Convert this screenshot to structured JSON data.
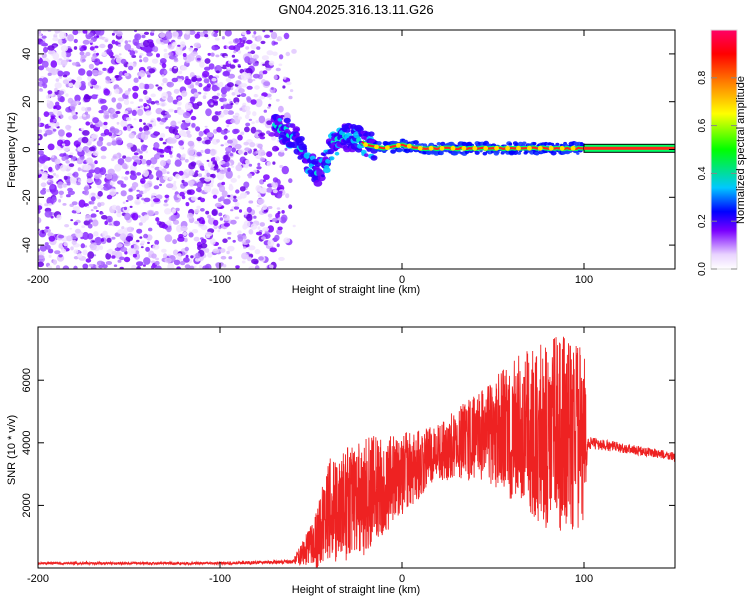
{
  "title": "GN04.2025.316.13.11.G26",
  "chart_data": [
    {
      "type": "heatmap",
      "name": "spectrogram",
      "xlabel": "Height of straight line (km)",
      "ylabel": "Frequency (Hz)",
      "xlim": [
        -200,
        150
      ],
      "ylim": [
        -50,
        50
      ],
      "xticks": [
        -200,
        -100,
        0,
        100
      ],
      "yticks": [
        -40,
        -20,
        0,
        20,
        40
      ],
      "colorbar": {
        "label": "Normalized spectral amplitude",
        "range": [
          0,
          1
        ],
        "ticks": [
          "0.0",
          "0.2",
          "0.4",
          "0.6",
          "0.8"
        ],
        "colors": [
          "#ffffff",
          "#e9d4ff",
          "#7a00ff",
          "#0000ff",
          "#00c8ff",
          "#00ff00",
          "#ffff00",
          "#ff7f00",
          "#ff0000",
          "#ff0066"
        ]
      },
      "noise_region": {
        "x_range": [
          -200,
          -62
        ],
        "freq_range": [
          -50,
          50
        ]
      },
      "ridge": {
        "description": "main signal line",
        "points": [
          {
            "x": -70,
            "y": 10
          },
          {
            "x": -60,
            "y": 6
          },
          {
            "x": -52,
            "y": -4
          },
          {
            "x": -47,
            "y": -10
          },
          {
            "x": -42,
            "y": -5
          },
          {
            "x": -38,
            "y": 2
          },
          {
            "x": -32,
            "y": 5
          },
          {
            "x": -25,
            "y": 5
          },
          {
            "x": -20,
            "y": 2
          },
          {
            "x": -10,
            "y": 0.5
          },
          {
            "x": 0,
            "y": 2
          },
          {
            "x": 10,
            "y": 0.5
          },
          {
            "x": 50,
            "y": 0.5
          },
          {
            "x": 100,
            "y": 0.5
          },
          {
            "x": 150,
            "y": 0.5
          }
        ]
      },
      "stable_band": {
        "x_range": [
          100,
          150
        ],
        "y": 0.5
      }
    },
    {
      "type": "line",
      "name": "snr",
      "xlabel": "Height of straight line (km)",
      "ylabel": "SNR (10 * v/v)",
      "xlim": [
        -200,
        150
      ],
      "ylim": [
        0,
        7700
      ],
      "xticks": [
        -200,
        -100,
        0,
        100
      ],
      "yticks": [
        2000,
        4000,
        6000
      ],
      "series_color": "#ee2222",
      "envelope": [
        {
          "x": -200,
          "mean": 150,
          "spread": 40
        },
        {
          "x": -100,
          "mean": 150,
          "spread": 40
        },
        {
          "x": -60,
          "mean": 200,
          "spread": 60
        },
        {
          "x": -48,
          "mean": 800,
          "spread": 800
        },
        {
          "x": -40,
          "mean": 1800,
          "spread": 1700
        },
        {
          "x": -20,
          "mean": 2300,
          "spread": 1900
        },
        {
          "x": 0,
          "mean": 3000,
          "spread": 1300
        },
        {
          "x": 20,
          "mean": 3700,
          "spread": 900
        },
        {
          "x": 45,
          "mean": 4300,
          "spread": 1500
        },
        {
          "x": 70,
          "mean": 4400,
          "spread": 2700
        },
        {
          "x": 85,
          "mean": 4300,
          "spread": 3300
        },
        {
          "x": 100,
          "mean": 4200,
          "spread": 2900
        },
        {
          "x": 102,
          "mean": 4000,
          "spread": 200
        },
        {
          "x": 125,
          "mean": 3800,
          "spread": 150
        },
        {
          "x": 150,
          "mean": 3550,
          "spread": 150
        }
      ]
    }
  ]
}
